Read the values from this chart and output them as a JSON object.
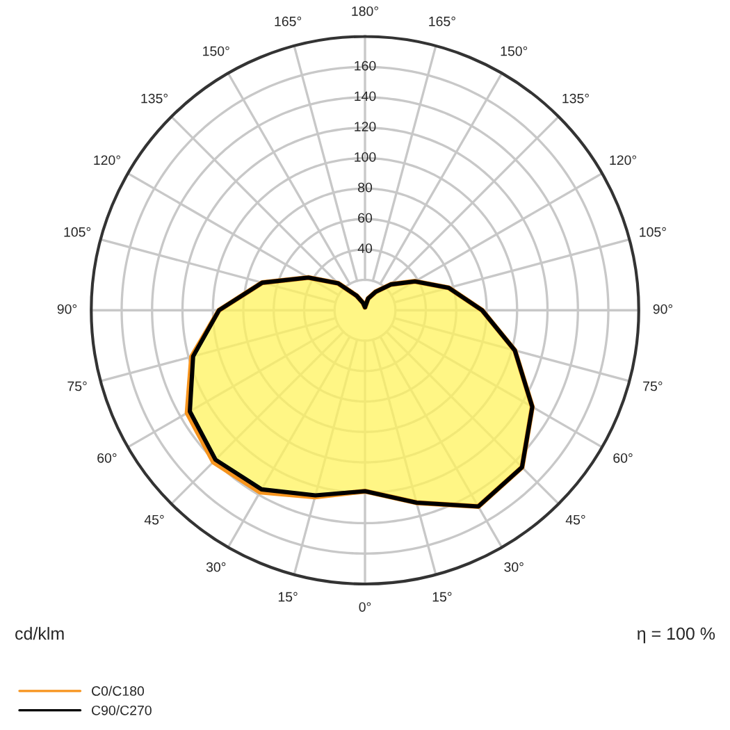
{
  "chart_data": {
    "type": "radar",
    "categories": [
      "180°",
      "165°",
      "150°",
      "135°",
      "120°",
      "105°",
      "90°",
      "75°",
      "60°",
      "45°",
      "30°",
      "15°",
      "0°",
      "15°",
      "30°",
      "45°",
      "60°",
      "75°",
      "90°",
      "105°",
      "120°",
      "135°",
      "150°",
      "165°"
    ],
    "series": [
      {
        "name": "C0/C180",
        "color": "#f7941d",
        "values": [
          2,
          8,
          14,
          24,
          38,
          57,
          77,
          102,
          127,
          146,
          149,
          131,
          119,
          127,
          138,
          141,
          135,
          118,
          96,
          70,
          43,
          25,
          11,
          5
        ]
      },
      {
        "name": "C90/C270",
        "color": "#000000",
        "values": [
          2,
          8,
          14,
          24,
          38,
          57,
          77,
          102,
          127,
          146,
          149,
          131,
          119,
          126,
          136,
          139,
          133,
          117,
          96,
          70,
          43,
          25,
          11,
          5
        ]
      }
    ],
    "ylim": [
      0,
      180
    ],
    "yticks": [
      40,
      60,
      80,
      100,
      120,
      140,
      160
    ],
    "grid": true,
    "legend": "bottom left",
    "annotations": [
      "cd/klm",
      "η = 100 %"
    ]
  }
}
